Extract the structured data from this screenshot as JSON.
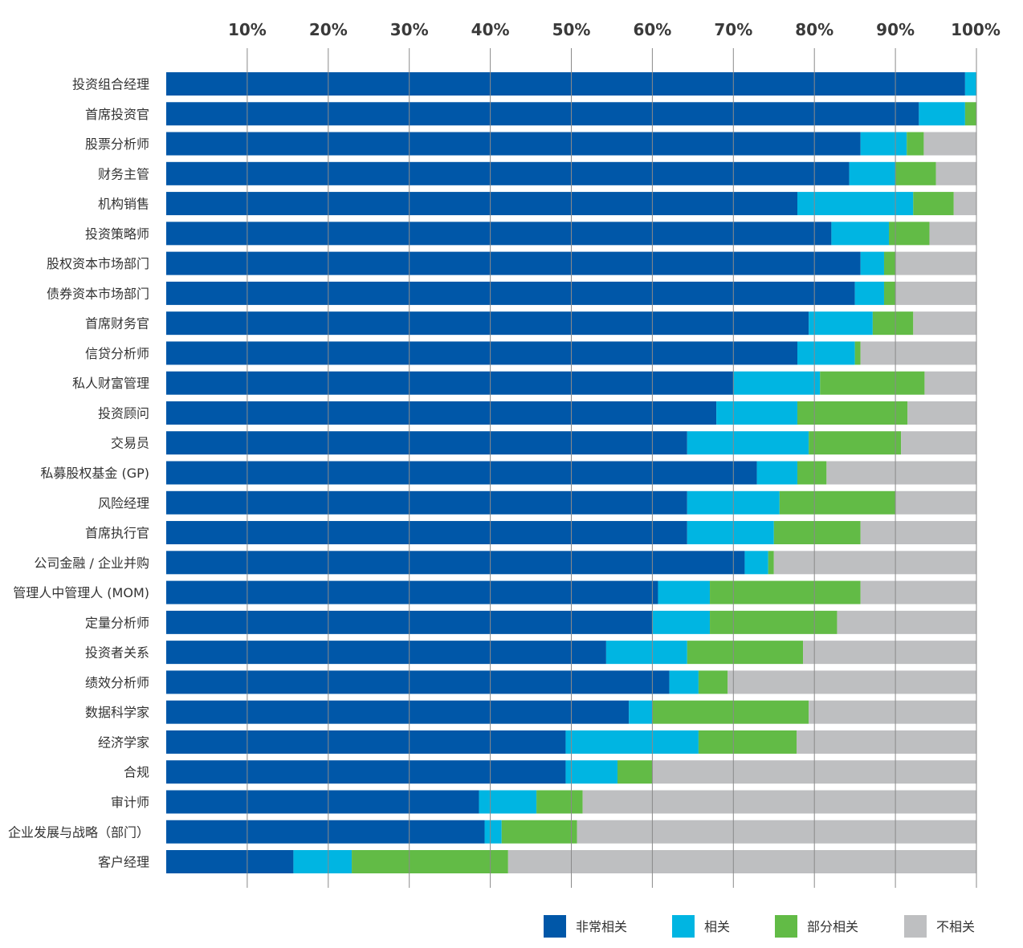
{
  "chart_data": {
    "type": "bar",
    "orientation": "horizontal",
    "stacked": true,
    "x_ticks": [
      "10%",
      "20%",
      "30%",
      "40%",
      "50%",
      "60%",
      "70%",
      "80%",
      "90%",
      "100%"
    ],
    "x_tick_values": [
      10,
      20,
      30,
      40,
      50,
      60,
      70,
      80,
      90,
      100
    ],
    "xlim": [
      0,
      100
    ],
    "grid": true,
    "legend_position": "bottom-right",
    "categories": [
      "投资组合经理",
      "首席投资官",
      "股票分析师",
      "财务主管",
      "机构销售",
      "投资策略师",
      "股权资本市场部门",
      "债券资本市场部门",
      "首席财务官",
      "信贷分析师",
      "私人财富管理",
      "投资顾问",
      "交易员",
      "私募股权基金 (GP)",
      "风险经理",
      "首席执行官",
      "公司金融 / 企业并购",
      "管理人中管理人 (MOM)",
      "定量分析师",
      "投资者关系",
      "绩效分析师",
      "数据科学家",
      "经济学家",
      "合规",
      "审计师",
      "企业发展与战略（部门）",
      "客户经理"
    ],
    "series": [
      {
        "name": "非常相关",
        "color": "#0057a8",
        "values": [
          98.6,
          92.9,
          85.7,
          84.3,
          77.9,
          82.1,
          85.7,
          85.0,
          79.3,
          77.9,
          70.0,
          67.9,
          64.3,
          72.9,
          64.3,
          64.3,
          71.4,
          60.7,
          60.0,
          54.3,
          62.1,
          57.1,
          49.3,
          49.3,
          38.6,
          39.3,
          15.7
        ]
      },
      {
        "name": "相关",
        "color": "#00b5e2",
        "values": [
          1.4,
          5.7,
          5.7,
          5.7,
          14.3,
          7.1,
          2.9,
          3.6,
          7.9,
          7.1,
          10.7,
          10.0,
          15.0,
          5.0,
          11.4,
          10.7,
          2.9,
          6.4,
          7.1,
          10.0,
          3.6,
          2.9,
          16.4,
          6.4,
          7.1,
          2.1,
          7.2
        ]
      },
      {
        "name": "部分相关",
        "color": "#62bb46",
        "values": [
          0,
          1.4,
          2.1,
          5.0,
          5.0,
          5.0,
          1.4,
          1.4,
          5.0,
          0.7,
          12.9,
          13.6,
          11.4,
          3.6,
          14.3,
          10.7,
          0.7,
          18.6,
          15.7,
          14.3,
          3.6,
          19.3,
          12.1,
          4.3,
          5.7,
          9.3,
          19.3
        ]
      },
      {
        "name": "不相关",
        "color": "#bebfc1",
        "values": [
          0,
          0,
          6.5,
          5.0,
          2.8,
          5.8,
          10.0,
          10.0,
          7.8,
          14.3,
          6.4,
          8.5,
          9.3,
          18.5,
          10.0,
          14.3,
          25.0,
          14.3,
          17.2,
          21.4,
          30.7,
          20.7,
          22.2,
          40.0,
          48.6,
          49.3,
          57.8
        ]
      }
    ]
  }
}
